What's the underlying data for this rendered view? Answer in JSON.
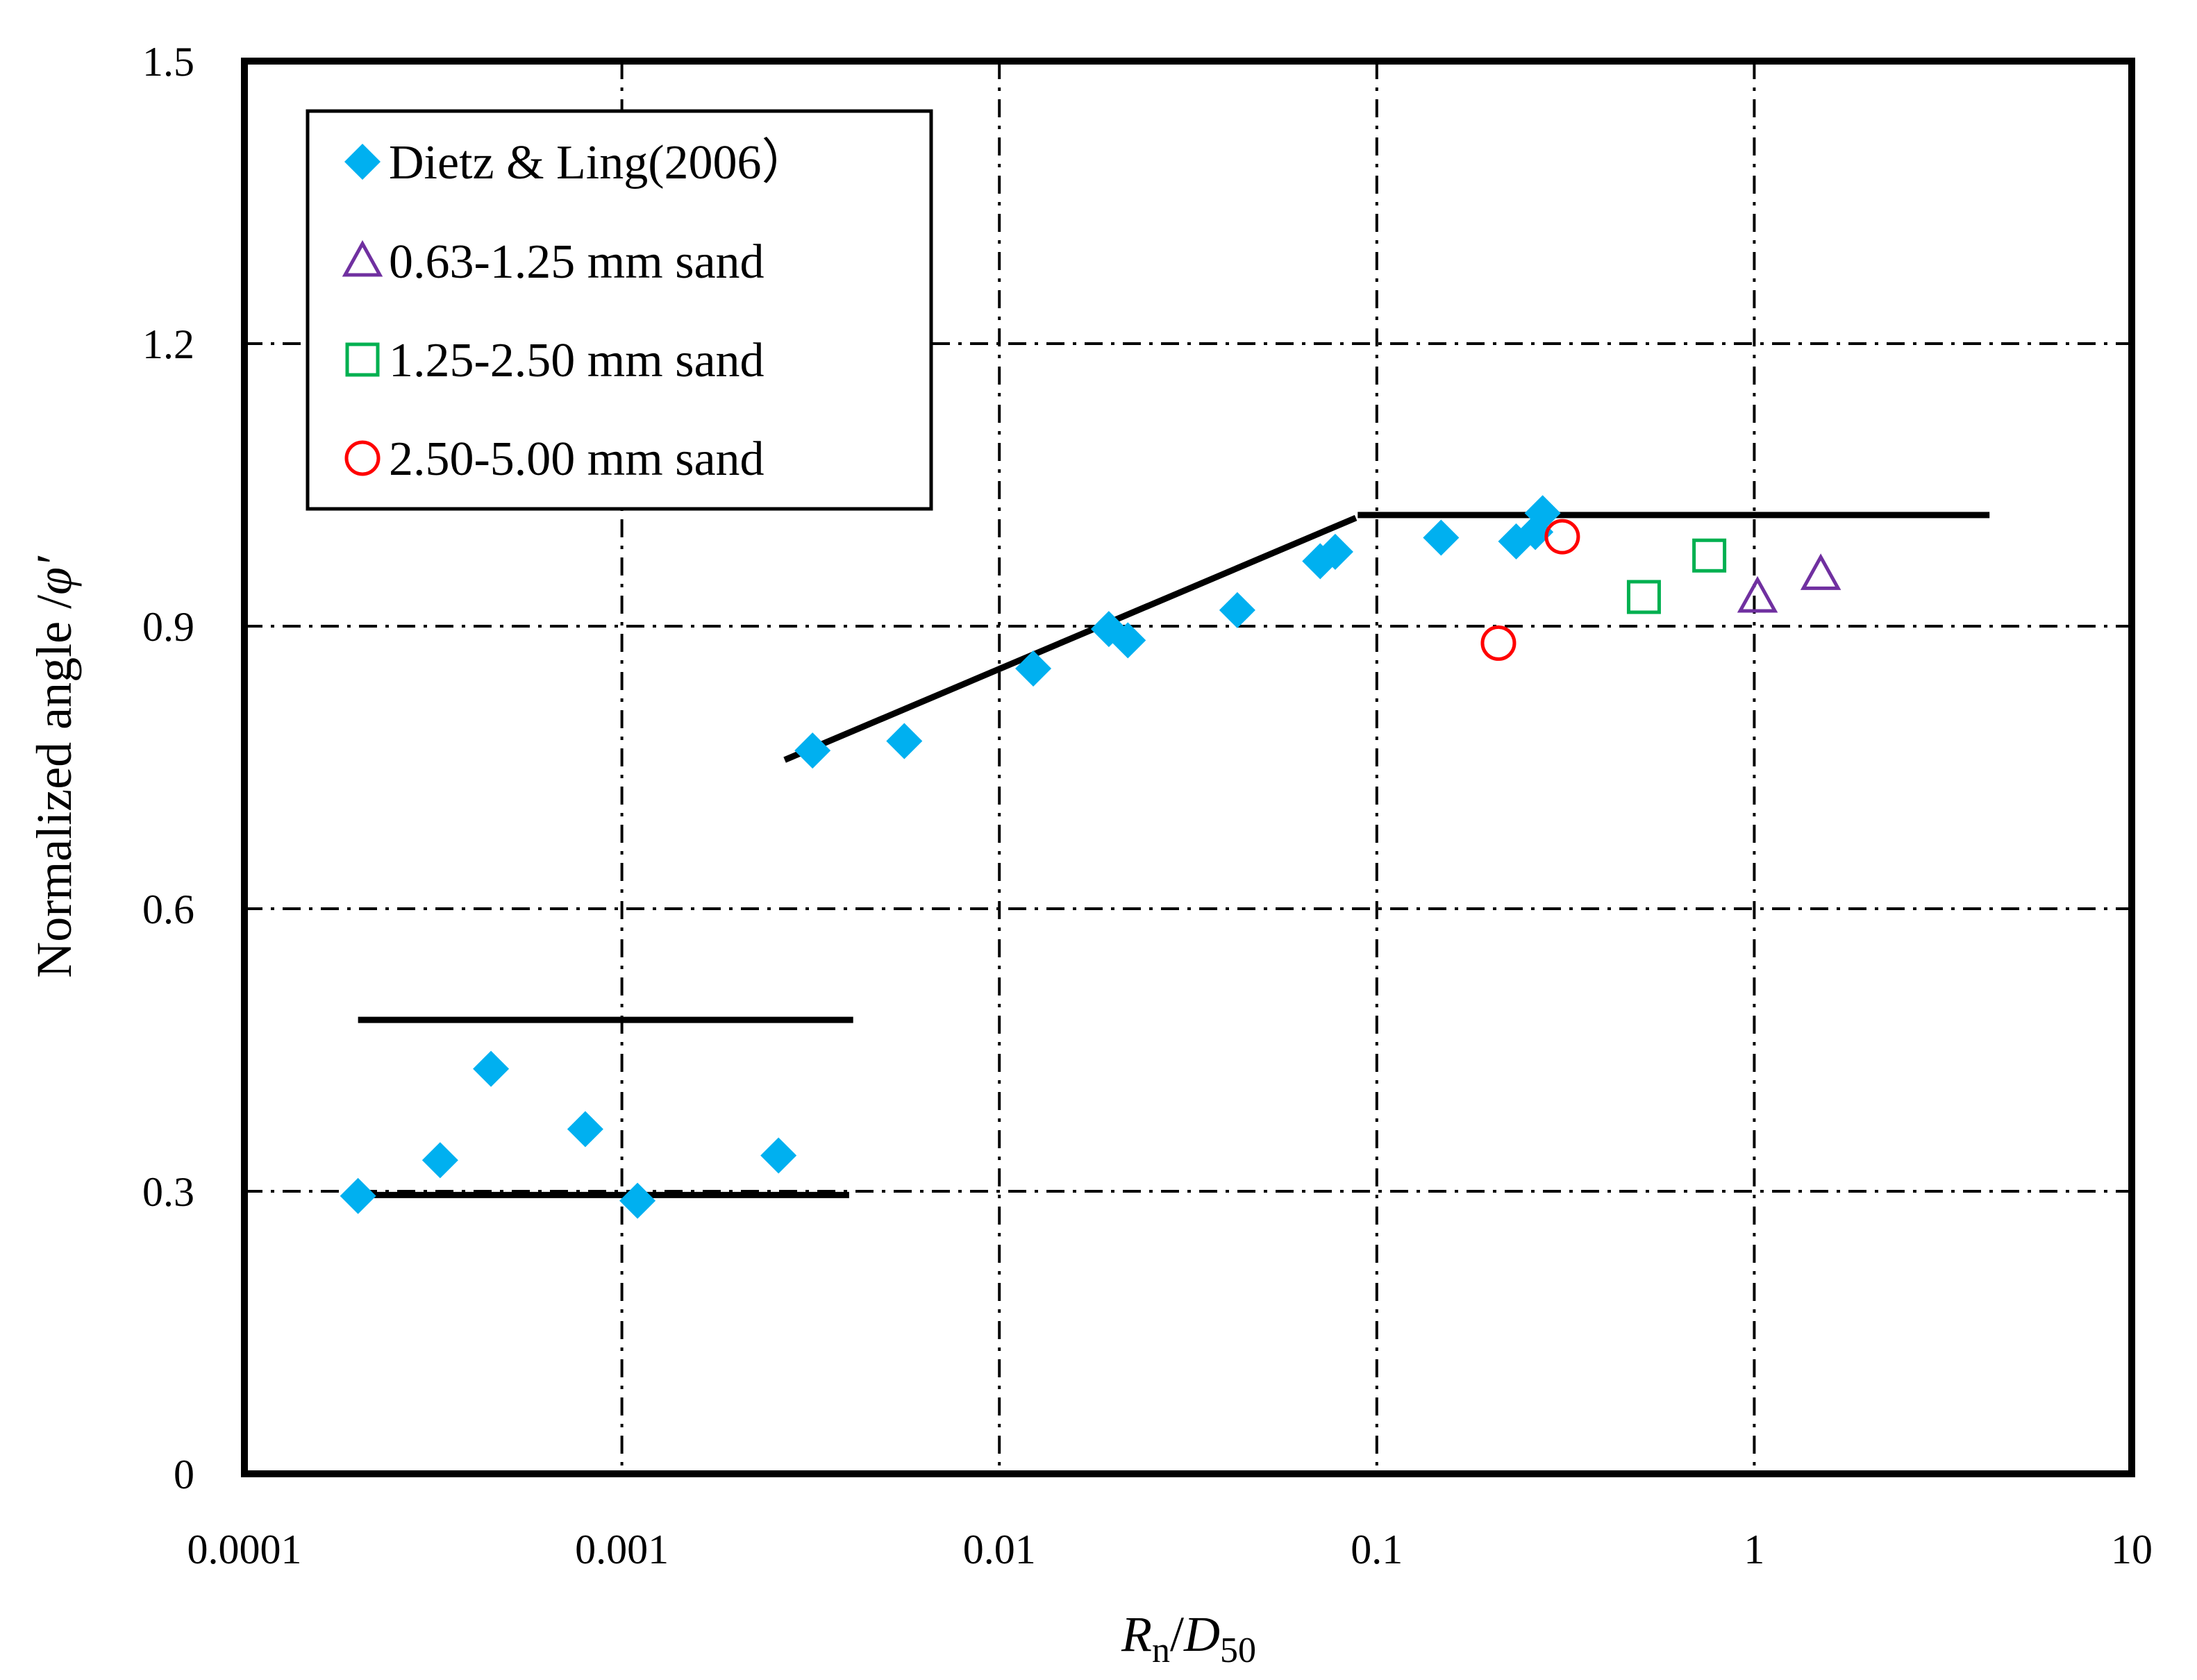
{
  "chart_data": {
    "type": "scatter",
    "title": "",
    "xlabel_parts": [
      {
        "text": "R",
        "italic": true,
        "sub": false
      },
      {
        "text": "n",
        "italic": false,
        "sub": true
      },
      {
        "text": "/",
        "italic": false,
        "sub": false
      },
      {
        "text": "D",
        "italic": true,
        "sub": false
      },
      {
        "text": "50",
        "italic": false,
        "sub": true
      }
    ],
    "ylabel": "Normalized angle /",
    "ylabel_symbol": "φ′",
    "x_scale": "log",
    "xlim": [
      0.0001,
      10
    ],
    "ylim": [
      0,
      1.5
    ],
    "x_ticks": [
      {
        "value": 0.0001,
        "label": "0.0001"
      },
      {
        "value": 0.001,
        "label": "0.001"
      },
      {
        "value": 0.01,
        "label": "0.01"
      },
      {
        "value": 0.1,
        "label": "0.1"
      },
      {
        "value": 1,
        "label": "1"
      },
      {
        "value": 10,
        "label": "10"
      }
    ],
    "y_ticks": [
      {
        "value": 0,
        "label": "0"
      },
      {
        "value": 0.3,
        "label": "0.3"
      },
      {
        "value": 0.6,
        "label": "0.6"
      },
      {
        "value": 0.9,
        "label": "0.9"
      },
      {
        "value": 1.2,
        "label": "1.2"
      },
      {
        "value": 1.5,
        "label": "1.5"
      }
    ],
    "grid": true,
    "legend_position": "top-left",
    "series": [
      {
        "name": "Dietz & Ling(2006）",
        "marker": "diamond",
        "filled": true,
        "color": "#00B0F0",
        "points": [
          {
            "x": 0.0002,
            "y": 0.295
          },
          {
            "x": 0.00033,
            "y": 0.333
          },
          {
            "x": 0.00045,
            "y": 0.43
          },
          {
            "x": 0.0008,
            "y": 0.366
          },
          {
            "x": 0.0011,
            "y": 0.29
          },
          {
            "x": 0.0026,
            "y": 0.338
          },
          {
            "x": 0.0032,
            "y": 0.768
          },
          {
            "x": 0.0056,
            "y": 0.778
          },
          {
            "x": 0.0123,
            "y": 0.855
          },
          {
            "x": 0.0195,
            "y": 0.897
          },
          {
            "x": 0.0219,
            "y": 0.885
          },
          {
            "x": 0.0427,
            "y": 0.917
          },
          {
            "x": 0.0708,
            "y": 0.969
          },
          {
            "x": 0.0776,
            "y": 0.979
          },
          {
            "x": 0.148,
            "y": 0.994
          },
          {
            "x": 0.234,
            "y": 0.99
          },
          {
            "x": 0.263,
            "y": 1.0
          },
          {
            "x": 0.275,
            "y": 1.02
          }
        ]
      },
      {
        "name": "0.63-1.25 mm sand",
        "marker": "triangle",
        "filled": false,
        "color": "#7030A0",
        "points": [
          {
            "x": 1.02,
            "y": 0.931
          },
          {
            "x": 1.5,
            "y": 0.955
          }
        ]
      },
      {
        "name": "1.25-2.50 mm sand",
        "marker": "square",
        "filled": false,
        "color": "#00B050",
        "points": [
          {
            "x": 0.51,
            "y": 0.931
          },
          {
            "x": 0.76,
            "y": 0.975
          }
        ]
      },
      {
        "name": "2.50-5.00 mm sand",
        "marker": "circle",
        "filled": false,
        "color": "#FF0000",
        "points": [
          {
            "x": 0.21,
            "y": 0.882
          },
          {
            "x": 0.31,
            "y": 0.995
          }
        ]
      }
    ],
    "trend_lines": [
      {
        "x": [
          0.0002,
          0.0041
        ],
        "y": [
          0.482,
          0.482
        ]
      },
      {
        "x": [
          0.0002,
          0.004
        ],
        "y": [
          0.296,
          0.296
        ]
      },
      {
        "x": [
          0.0027,
          0.088
        ],
        "y": [
          0.758,
          1.015
        ]
      },
      {
        "x": [
          0.089,
          4.2
        ],
        "y": [
          1.018,
          1.018
        ]
      }
    ]
  }
}
